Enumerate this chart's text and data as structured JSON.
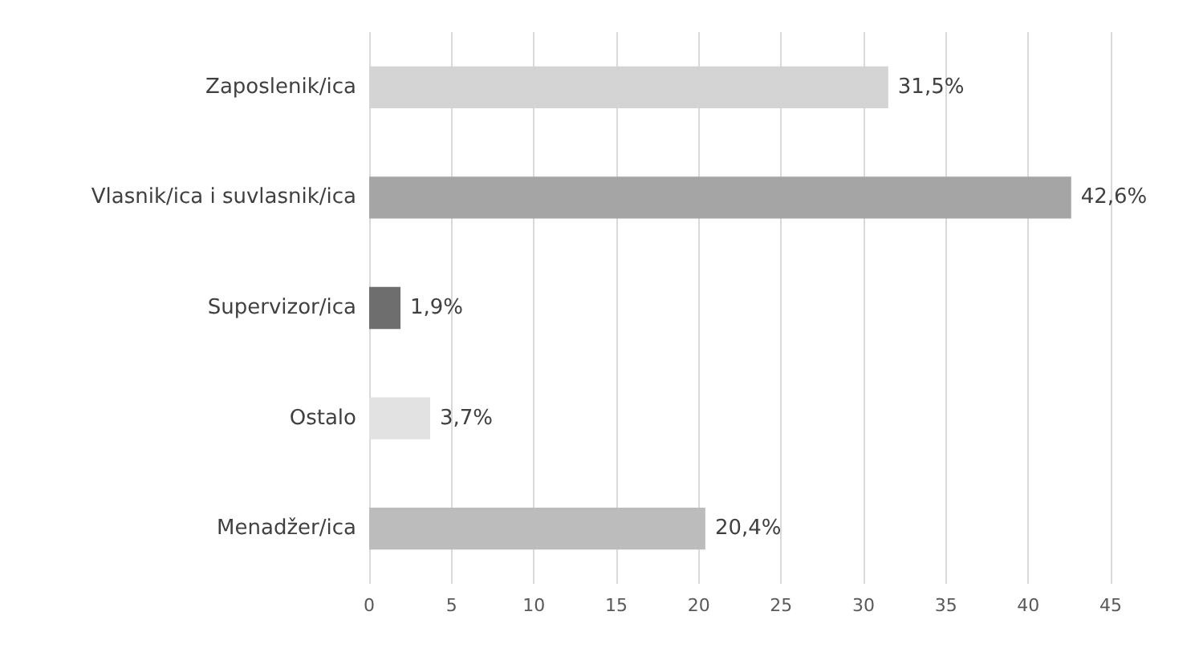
{
  "chart_data": {
    "type": "bar",
    "orientation": "horizontal",
    "categories": [
      "Zaposlenik/ica",
      "Vlasnik/ica i suvlasnik/ica",
      "Supervizor/ica",
      "Ostalo",
      "Menadžer/ica"
    ],
    "values": [
      31.5,
      42.6,
      1.9,
      3.7,
      20.4
    ],
    "colors": [
      "#d4d4d4",
      "#a5a5a5",
      "#6e6e6e",
      "#e2e2e2",
      "#bcbcbc"
    ],
    "value_labels": [
      "31,5%",
      "42,6%",
      "1,9%",
      "3,7%",
      "20,4%"
    ],
    "xlim": [
      0,
      45
    ],
    "xticks": [
      0,
      5,
      10,
      15,
      20,
      25,
      30,
      35,
      40,
      45
    ],
    "grid": "x"
  }
}
